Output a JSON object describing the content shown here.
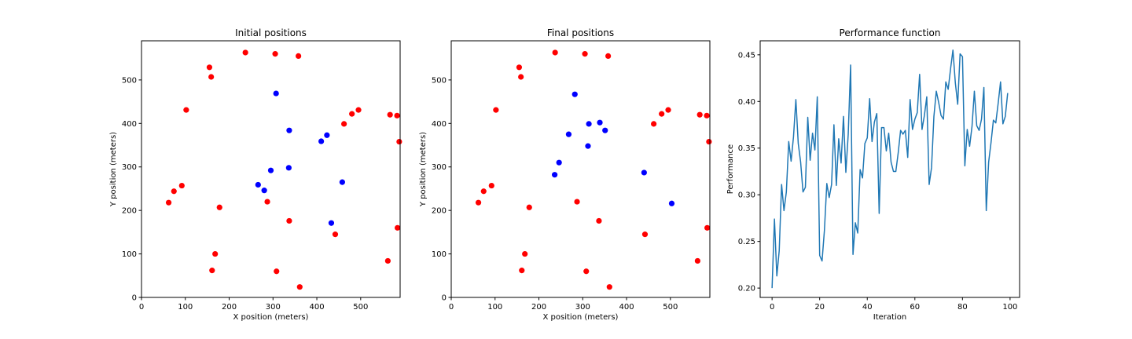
{
  "chart_data": [
    {
      "type": "scatter",
      "title": "Initial positions",
      "xlabel": "X position (meters)",
      "ylabel": "Y position (meters)",
      "xlim": [
        0,
        590
      ],
      "ylim": [
        0,
        590
      ],
      "xticks": [
        0,
        100,
        200,
        300,
        400,
        500
      ],
      "yticks": [
        0,
        100,
        200,
        300,
        400,
        500
      ],
      "grid": false,
      "series": [
        {
          "color": "#ff0000",
          "points": [
            [
              237,
              563
            ],
            [
              305,
              560
            ],
            [
              358,
              555
            ],
            [
              155,
              529
            ],
            [
              159,
              507
            ],
            [
              102,
              431
            ],
            [
              495,
              431
            ],
            [
              480,
              422
            ],
            [
              567,
              420
            ],
            [
              583,
              418
            ],
            [
              462,
              399
            ],
            [
              588,
              358
            ],
            [
              92,
              257
            ],
            [
              74,
              244
            ],
            [
              62,
              218
            ],
            [
              287,
              220
            ],
            [
              178,
              207
            ],
            [
              337,
              176
            ],
            [
              442,
              145
            ],
            [
              584,
              160
            ],
            [
              168,
              100
            ],
            [
              562,
              84
            ],
            [
              161,
              62
            ],
            [
              308,
              60
            ],
            [
              361,
              24
            ]
          ]
        },
        {
          "color": "#0000ff",
          "points": [
            [
              307,
              469
            ],
            [
              337,
              384
            ],
            [
              423,
              373
            ],
            [
              410,
              359
            ],
            [
              295,
              292
            ],
            [
              336,
              298
            ],
            [
              266,
              259
            ],
            [
              280,
              246
            ],
            [
              458,
              265
            ],
            [
              433,
              171
            ]
          ]
        }
      ]
    },
    {
      "type": "scatter",
      "title": "Final positions",
      "xlabel": "X position (meters)",
      "ylabel": "Y position (meters)",
      "xlim": [
        0,
        590
      ],
      "ylim": [
        0,
        590
      ],
      "xticks": [
        0,
        100,
        200,
        300,
        400,
        500
      ],
      "yticks": [
        0,
        100,
        200,
        300,
        400,
        500
      ],
      "grid": false,
      "series": [
        {
          "color": "#ff0000",
          "points": [
            [
              237,
              563
            ],
            [
              305,
              560
            ],
            [
              358,
              555
            ],
            [
              155,
              529
            ],
            [
              159,
              507
            ],
            [
              102,
              431
            ],
            [
              495,
              431
            ],
            [
              480,
              422
            ],
            [
              567,
              420
            ],
            [
              583,
              418
            ],
            [
              462,
              399
            ],
            [
              588,
              358
            ],
            [
              92,
              257
            ],
            [
              74,
              244
            ],
            [
              62,
              218
            ],
            [
              287,
              220
            ],
            [
              178,
              207
            ],
            [
              337,
              176
            ],
            [
              442,
              145
            ],
            [
              584,
              160
            ],
            [
              168,
              100
            ],
            [
              562,
              84
            ],
            [
              161,
              62
            ],
            [
              308,
              60
            ],
            [
              361,
              24
            ]
          ]
        },
        {
          "color": "#0000ff",
          "points": [
            [
              282,
              467
            ],
            [
              314,
              399
            ],
            [
              339,
              402
            ],
            [
              268,
              375
            ],
            [
              351,
              384
            ],
            [
              312,
              348
            ],
            [
              246,
              310
            ],
            [
              236,
              282
            ],
            [
              440,
              287
            ],
            [
              503,
              216
            ]
          ]
        }
      ]
    },
    {
      "type": "line",
      "title": "Performance function",
      "xlabel": "Iteration",
      "ylabel": "Performance",
      "xlim": [
        -5,
        104
      ],
      "ylim": [
        0.19,
        0.465
      ],
      "xticks": [
        0,
        20,
        40,
        60,
        80,
        100
      ],
      "yticks": [
        0.2,
        0.25,
        0.3,
        0.35,
        0.4,
        0.45
      ],
      "ytick_labels": [
        "0.20",
        "0.25",
        "0.30",
        "0.35",
        "0.40",
        "0.45"
      ],
      "grid": false,
      "series": [
        {
          "color": "#1f77b4",
          "x": [
            0,
            1,
            2,
            3,
            4,
            5,
            6,
            7,
            8,
            9,
            10,
            11,
            12,
            13,
            14,
            15,
            16,
            17,
            18,
            19,
            20,
            21,
            22,
            23,
            24,
            25,
            26,
            27,
            28,
            29,
            30,
            31,
            32,
            33,
            34,
            35,
            36,
            37,
            38,
            39,
            40,
            41,
            42,
            43,
            44,
            45,
            46,
            47,
            48,
            49,
            50,
            51,
            52,
            53,
            54,
            55,
            56,
            57,
            58,
            59,
            60,
            61,
            62,
            63,
            64,
            65,
            66,
            67,
            68,
            69,
            70,
            71,
            72,
            73,
            74,
            75,
            76,
            77,
            78,
            79,
            80,
            81,
            82,
            83,
            84,
            85,
            86,
            87,
            88,
            89,
            90,
            91,
            92,
            93,
            94,
            95,
            96,
            97,
            98,
            99
          ],
          "y": [
            0.2,
            0.274,
            0.213,
            0.24,
            0.311,
            0.283,
            0.303,
            0.357,
            0.336,
            0.362,
            0.402,
            0.355,
            0.335,
            0.303,
            0.308,
            0.383,
            0.337,
            0.366,
            0.348,
            0.405,
            0.235,
            0.229,
            0.262,
            0.312,
            0.297,
            0.311,
            0.375,
            0.31,
            0.36,
            0.334,
            0.384,
            0.324,
            0.365,
            0.439,
            0.236,
            0.27,
            0.259,
            0.327,
            0.318,
            0.355,
            0.361,
            0.403,
            0.357,
            0.378,
            0.387,
            0.28,
            0.372,
            0.372,
            0.347,
            0.366,
            0.335,
            0.325,
            0.325,
            0.345,
            0.369,
            0.365,
            0.369,
            0.34,
            0.402,
            0.37,
            0.381,
            0.388,
            0.429,
            0.37,
            0.385,
            0.405,
            0.311,
            0.329,
            0.384,
            0.411,
            0.399,
            0.385,
            0.381,
            0.421,
            0.413,
            0.435,
            0.455,
            0.42,
            0.397,
            0.451,
            0.448,
            0.331,
            0.37,
            0.352,
            0.373,
            0.411,
            0.374,
            0.369,
            0.381,
            0.415,
            0.283,
            0.335,
            0.356,
            0.38,
            0.377,
            0.398,
            0.421,
            0.376,
            0.384,
            0.409
          ]
        }
      ]
    }
  ]
}
